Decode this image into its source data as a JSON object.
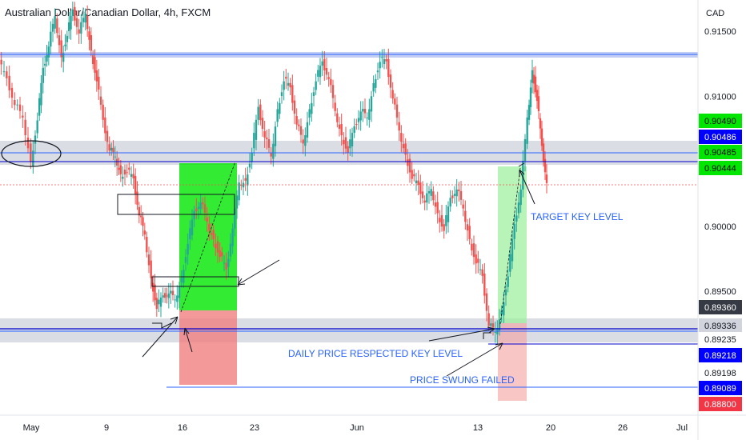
{
  "header": {
    "title": "Australian Dollar/Canadian Dollar, 4h, FXCM"
  },
  "colors": {
    "up": "#26a69a",
    "down": "#ef5350",
    "zone": "#d1d4dc",
    "blue_line": "#2962ff",
    "green_box": "#00e600",
    "red_box": "#ff6b6b",
    "label_blue": "#1e3ddb"
  },
  "chart_data": {
    "type": "candlestick",
    "title": "Australian Dollar/Canadian Dollar, 4h, FXCM",
    "currency_label": "CAD",
    "y_ticks": [
      "0.91500",
      "0.91000",
      "0.90000",
      "0.89500"
    ],
    "y_tick_values": [
      0.915,
      0.91,
      0.9,
      0.895
    ],
    "ylim": [
      0.8868,
      0.917
    ],
    "x_ticks": [
      "May",
      "9",
      "16",
      "23",
      "Jun",
      "13",
      "20",
      "26",
      "Jul"
    ],
    "price_labels": [
      {
        "text": "0.90490",
        "value": 0.9049,
        "bg": "#00e600",
        "fg": "#000000"
      },
      {
        "text": "0.90486",
        "value": 0.90486,
        "bg": "#0000ff",
        "fg": "#ffffff"
      },
      {
        "text": "0.90485",
        "value": 0.90485,
        "bg": "#00e600",
        "fg": "#000000"
      },
      {
        "text": "0.90444",
        "value": 0.90444,
        "bg": "#00e600",
        "fg": "#000000"
      },
      {
        "text": "0.89360",
        "value": 0.8936,
        "bg": "#363a45",
        "fg": "#ffffff"
      },
      {
        "text": "0.89336",
        "value": 0.89336,
        "bg": "#d1d4dc",
        "fg": "#131722"
      },
      {
        "text": "0.89235",
        "value": 0.89235,
        "bg": "#ffffff",
        "fg": "#131722"
      },
      {
        "text": "0.89218",
        "value": 0.89218,
        "bg": "#0000ff",
        "fg": "#ffffff"
      },
      {
        "text": "0.89198",
        "value": 0.89198,
        "bg": "#ffffff",
        "fg": "#131722"
      },
      {
        "text": "0.89089",
        "value": 0.89089,
        "bg": "#0000ff",
        "fg": "#ffffff"
      },
      {
        "text": "0.88800",
        "value": 0.888,
        "bg": "#f23645",
        "fg": "#ffffff"
      }
    ],
    "levels": {
      "top_resistance": 0.9131,
      "key_level_upper": [
        0.904,
        0.9054
      ],
      "key_level_lower": [
        0.892,
        0.8937
      ],
      "blue_lines": [
        0.90486,
        0.90444,
        0.89336,
        0.89218,
        0.89089
      ]
    },
    "annotations": [
      {
        "text": "TARGET KEY LEVEL"
      },
      {
        "text": "DAILY PRICE RESPECTED KEY LEVEL"
      },
      {
        "text": "PRICE SWUNG FAILED"
      }
    ]
  }
}
